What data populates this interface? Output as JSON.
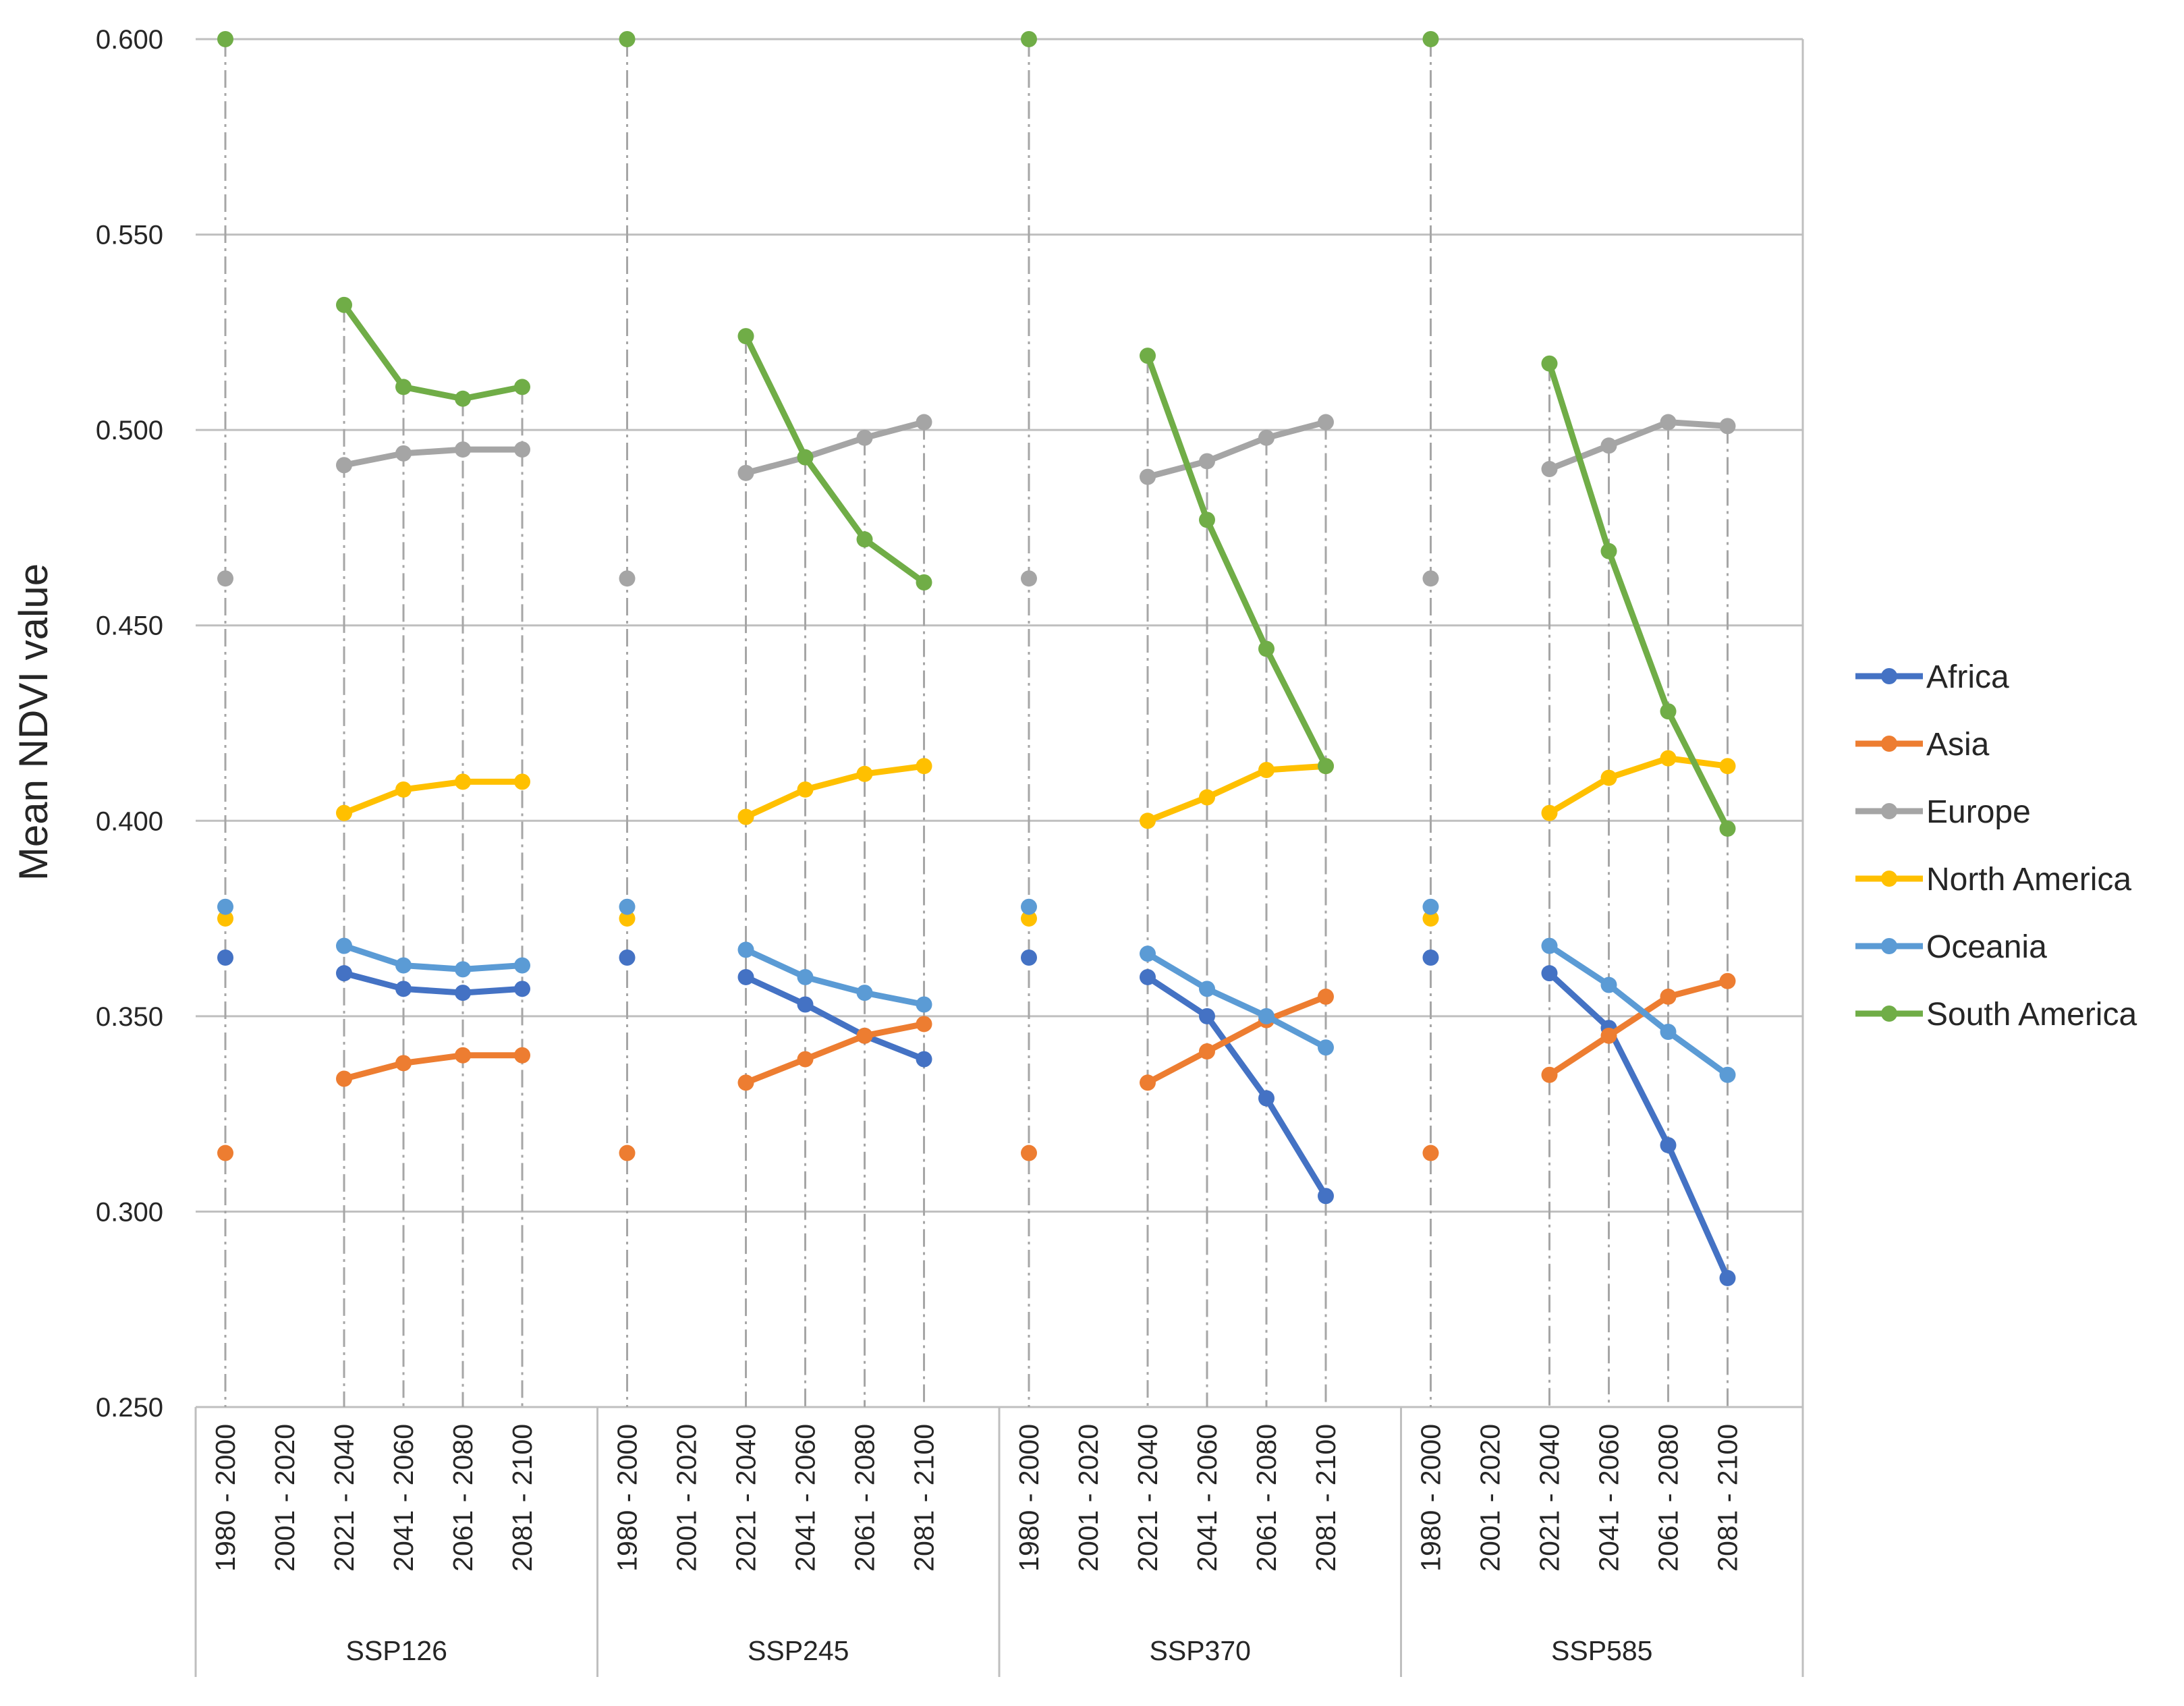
{
  "chart_data": {
    "type": "line",
    "title": "",
    "xlabel": "",
    "ylabel": "Mean NDVI value",
    "ylim": [
      0.25,
      0.6
    ],
    "y_ticks": [
      "0.250",
      "0.300",
      "0.350",
      "0.400",
      "0.450",
      "0.500",
      "0.550",
      "0.600"
    ],
    "grid": "horizontal",
    "legend_position": "right",
    "groups": [
      "SSP126",
      "SSP245",
      "SSP370",
      "SSP585"
    ],
    "categories": [
      "1980 - 2000",
      "2001 - 2020",
      "2021 - 2040",
      "2041 - 2060",
      "2061 - 2080",
      "2081 - 2100"
    ],
    "series": [
      {
        "name": "Africa",
        "color": "#4472C4",
        "values": {
          "SSP126": [
            0.365,
            null,
            0.361,
            0.357,
            0.356,
            0.357
          ],
          "SSP245": [
            0.365,
            null,
            0.36,
            0.353,
            0.345,
            0.339
          ],
          "SSP370": [
            0.365,
            null,
            0.36,
            0.35,
            0.329,
            0.304
          ],
          "SSP585": [
            0.365,
            null,
            0.361,
            0.347,
            0.317,
            0.283
          ]
        }
      },
      {
        "name": "Asia",
        "color": "#ED7D31",
        "values": {
          "SSP126": [
            0.315,
            null,
            0.334,
            0.338,
            0.34,
            0.34
          ],
          "SSP245": [
            0.315,
            null,
            0.333,
            0.339,
            0.345,
            0.348
          ],
          "SSP370": [
            0.315,
            null,
            0.333,
            0.341,
            0.349,
            0.355
          ],
          "SSP585": [
            0.315,
            null,
            0.335,
            0.345,
            0.355,
            0.359
          ]
        }
      },
      {
        "name": "Europe",
        "color": "#A5A5A5",
        "values": {
          "SSP126": [
            0.462,
            null,
            0.491,
            0.494,
            0.495,
            0.495
          ],
          "SSP245": [
            0.462,
            null,
            0.489,
            0.493,
            0.498,
            0.502
          ],
          "SSP370": [
            0.462,
            null,
            0.488,
            0.492,
            0.498,
            0.502
          ],
          "SSP585": [
            0.462,
            null,
            0.49,
            0.496,
            0.502,
            0.501
          ]
        }
      },
      {
        "name": "North America",
        "color": "#FFC000",
        "values": {
          "SSP126": [
            0.375,
            null,
            0.402,
            0.408,
            0.41,
            0.41
          ],
          "SSP245": [
            0.375,
            null,
            0.401,
            0.408,
            0.412,
            0.414
          ],
          "SSP370": [
            0.375,
            null,
            0.4,
            0.406,
            0.413,
            0.414
          ],
          "SSP585": [
            0.375,
            null,
            0.402,
            0.411,
            0.416,
            0.414
          ]
        }
      },
      {
        "name": "Oceania",
        "color": "#5B9BD5",
        "values": {
          "SSP126": [
            0.378,
            null,
            0.368,
            0.363,
            0.362,
            0.363
          ],
          "SSP245": [
            0.378,
            null,
            0.367,
            0.36,
            0.356,
            0.353
          ],
          "SSP370": [
            0.378,
            null,
            0.366,
            0.357,
            0.35,
            0.342
          ],
          "SSP585": [
            0.378,
            null,
            0.368,
            0.358,
            0.346,
            0.335
          ]
        }
      },
      {
        "name": "South America",
        "color": "#70AD47",
        "values": {
          "SSP126": [
            0.6,
            null,
            0.532,
            0.511,
            0.508,
            0.511
          ],
          "SSP245": [
            0.6,
            null,
            0.524,
            0.493,
            0.472,
            0.461
          ],
          "SSP370": [
            0.6,
            null,
            0.519,
            0.477,
            0.444,
            0.414
          ],
          "SSP585": [
            0.6,
            null,
            0.517,
            0.469,
            0.428,
            0.398
          ]
        }
      }
    ]
  }
}
